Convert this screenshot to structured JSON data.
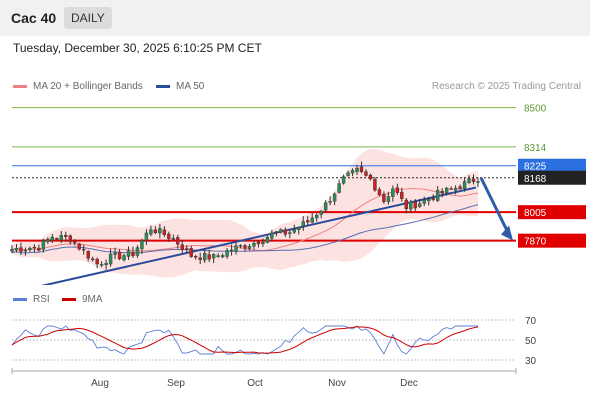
{
  "header": {
    "title": "Cac 40",
    "period": "DAILY"
  },
  "datetime": "Tuesday, December 30, 2025 6:10:25 PM CET",
  "legend": {
    "ma20": "MA 20 + Bollinger Bands",
    "ma50": "MA 50",
    "ma20_color": "#f08080",
    "ma50_color": "#2a4b9b"
  },
  "credit": "Research © 2025 Trading Central",
  "rsi_legend": {
    "rsi": "RSI",
    "ma": "9MA",
    "rsi_color": "#5b7fd6",
    "ma_color": "#cc0000"
  },
  "chart_data": [
    {
      "type": "candlestick",
      "title": "Cac 40",
      "price_scale": [
        7660,
        8560
      ],
      "months": [
        "Aug",
        "Sep",
        "Oct",
        "Nov",
        "Dec"
      ],
      "levels": [
        {
          "value": 8500,
          "label": "8500",
          "color": "#7cba4a",
          "style": "thin"
        },
        {
          "value": 8314,
          "label": "8314",
          "color": "#7cba4a",
          "style": "thin"
        },
        {
          "value": 8225,
          "label": "8225",
          "color": "#2b6fe0",
          "style": "tag"
        },
        {
          "value": 8168,
          "label": "8168",
          "color": "#222222",
          "style": "tag"
        },
        {
          "value": 8005,
          "label": "8005",
          "color": "#e00000",
          "style": "tag"
        },
        {
          "value": 7870,
          "label": "7870",
          "color": "#e00000",
          "style": "tag"
        }
      ],
      "last_close": 8168,
      "support_trendline": "rising",
      "forecast_arrow": {
        "from": 8168,
        "to": 7880
      }
    },
    {
      "type": "line",
      "title": "RSI",
      "series": [
        {
          "name": "RSI"
        },
        {
          "name": "9MA"
        }
      ],
      "ticks": [
        "70",
        "50",
        "30"
      ],
      "ylim": [
        20,
        80
      ]
    }
  ]
}
